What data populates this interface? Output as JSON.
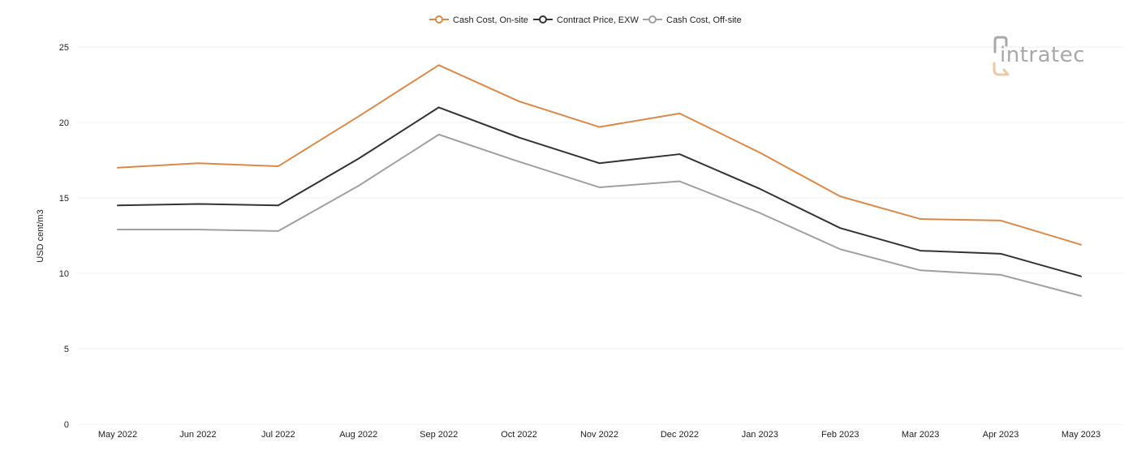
{
  "chart_data": {
    "type": "line",
    "title": "",
    "xlabel": "",
    "ylabel": "USD cent/m3",
    "categories": [
      "May 2022",
      "Jun 2022",
      "Jul 2022",
      "Aug 2022",
      "Sep 2022",
      "Oct 2022",
      "Nov 2022",
      "Dec 2022",
      "Jan 2023",
      "Feb 2023",
      "Mar 2023",
      "Apr 2023",
      "May 2023"
    ],
    "yticks": [
      "0",
      "5",
      "10",
      "15",
      "20",
      "25"
    ],
    "ylim": [
      0,
      25
    ],
    "grid": true,
    "legend_position": "top-center",
    "series": [
      {
        "name": "Cash Cost, On-site",
        "color": "#d9894a",
        "values": [
          17.0,
          17.3,
          17.1,
          20.4,
          23.8,
          21.4,
          19.7,
          20.6,
          18.0,
          15.1,
          13.6,
          13.5,
          11.9
        ]
      },
      {
        "name": "Contract Price, EXW",
        "color": "#333333",
        "values": [
          14.5,
          14.6,
          14.5,
          17.6,
          21.0,
          19.0,
          17.3,
          17.9,
          15.6,
          13.0,
          11.5,
          11.3,
          9.8
        ]
      },
      {
        "name": "Cash Cost, Off-site",
        "color": "#a0a0a0",
        "values": [
          12.9,
          12.9,
          12.8,
          15.8,
          19.2,
          17.4,
          15.7,
          16.1,
          14.0,
          11.6,
          10.2,
          9.9,
          8.5
        ]
      }
    ]
  },
  "logo": {
    "text": "intratec",
    "icon": "intratec-logo-icon",
    "color_primary": "#a8a8a8",
    "color_accent": "#e8c9a8"
  }
}
